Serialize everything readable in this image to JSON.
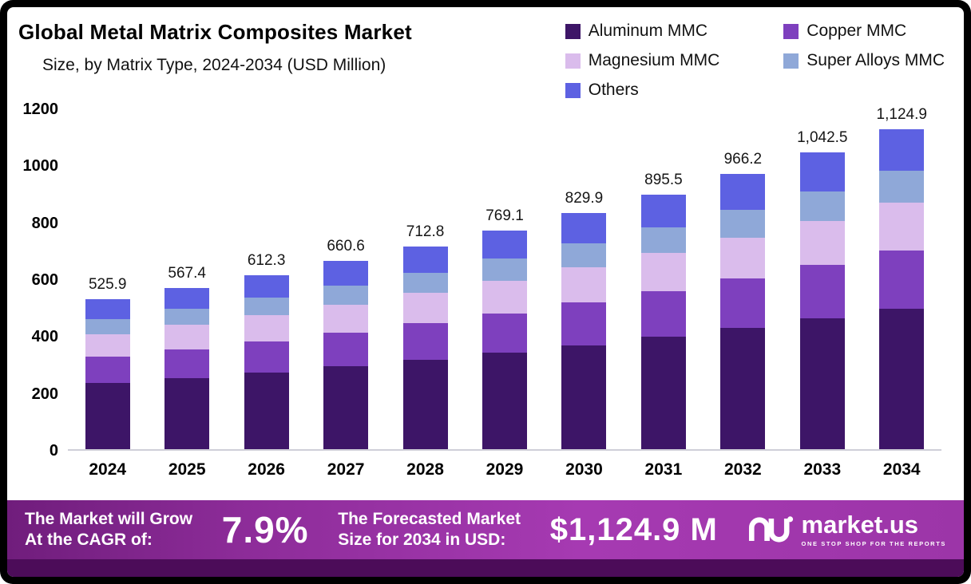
{
  "header": {
    "title": "Global Metal Matrix Composites Market",
    "subtitle": "Size, by Matrix Type, 2024-2034 (USD Million)"
  },
  "chart_data": {
    "type": "bar",
    "stacked": true,
    "title": "Global Metal Matrix Composites Market Size, by Matrix Type, 2024-2034 (USD Million)",
    "xlabel": "",
    "ylabel": "",
    "ylim": [
      0,
      1200
    ],
    "yticks": [
      0,
      200,
      400,
      600,
      800,
      1000,
      1200
    ],
    "grid": false,
    "legend_position": "top-right",
    "categories": [
      "2024",
      "2025",
      "2026",
      "2027",
      "2028",
      "2029",
      "2030",
      "2031",
      "2032",
      "2033",
      "2034"
    ],
    "series": [
      {
        "name": "Aluminum MMC",
        "color": "#3d1567",
        "values": [
          231.4,
          249.7,
          269.4,
          290.7,
          313.6,
          338.4,
          365.2,
          394.0,
          425.1,
          458.7,
          494.9
        ]
      },
      {
        "name": "Copper MMC",
        "color": "#7e40be",
        "values": [
          94.7,
          102.1,
          110.2,
          118.9,
          128.3,
          138.4,
          149.4,
          161.2,
          173.9,
          187.7,
          202.5
        ]
      },
      {
        "name": "Magnesium MMC",
        "color": "#dabcec",
        "values": [
          78.9,
          85.1,
          91.8,
          99.1,
          106.9,
          115.4,
          124.5,
          134.3,
          144.9,
          156.4,
          168.7
        ]
      },
      {
        "name": "Super Alloys MMC",
        "color": "#8fa8d8",
        "values": [
          52.6,
          56.7,
          61.2,
          66.1,
          71.3,
          76.9,
          83.0,
          89.6,
          96.6,
          104.3,
          112.5
        ]
      },
      {
        "name": "Others",
        "color": "#5d61e2",
        "values": [
          68.3,
          73.8,
          79.7,
          85.8,
          92.7,
          100.0,
          107.8,
          116.4,
          125.7,
          135.4,
          146.3
        ]
      }
    ],
    "totals": [
      "525.9",
      "567.4",
      "612.3",
      "660.6",
      "712.8",
      "769.1",
      "829.9",
      "895.5",
      "966.2",
      "1,042.5",
      "1,124.9"
    ]
  },
  "banner": {
    "left_line1": "The Market will Grow",
    "left_line2": "At the CAGR of:",
    "cagr": "7.9%",
    "mid_line1": "The Forecasted Market",
    "mid_line2": "Size for 2034 in USD:",
    "forecast": "$1,124.9 M",
    "brand": "market.us",
    "brand_tagline": "ONE STOP SHOP FOR THE REPORTS"
  },
  "colors": {
    "frame": "#000000",
    "banner_gradient_start": "#701d7c",
    "banner_gradient_end": "#a63ab2",
    "bottom_strip": "#4c0c59",
    "baseline": "#cfcfd8"
  }
}
